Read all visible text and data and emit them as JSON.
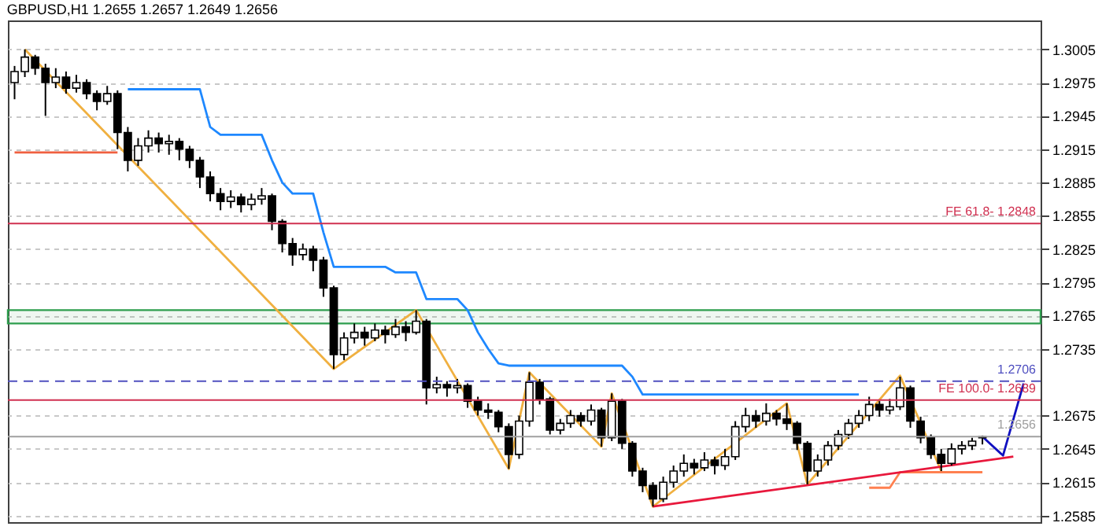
{
  "chart_data": {
    "type": "candlestick",
    "title": "GBPUSD,H1  1.2655 1.2657 1.2649 1.2656",
    "color": "#000000",
    "categories": [
      null,
      null,
      null,
      null,
      null,
      null,
      null,
      null,
      null,
      null,
      null,
      null,
      null,
      null,
      null,
      null,
      null,
      null,
      null,
      null,
      null,
      null,
      null,
      null,
      null,
      null,
      null,
      null,
      null,
      null,
      null,
      null,
      null,
      null,
      null,
      null,
      null,
      null,
      null,
      null,
      null,
      null,
      null,
      null,
      null,
      null,
      null,
      null,
      null,
      null,
      null,
      null,
      null,
      null,
      null,
      null,
      null,
      null,
      null,
      null,
      null,
      null,
      null,
      null,
      null,
      null,
      null,
      null,
      null,
      null,
      null,
      null,
      null,
      null,
      null,
      null,
      null,
      null,
      null,
      null,
      null,
      null,
      null,
      null,
      null,
      null,
      null,
      null,
      null,
      null,
      null,
      null,
      null,
      null,
      null,
      null,
      null,
      null,
      null,
      null
    ],
    "ohlc": [
      [
        1.2975,
        1.299,
        1.296,
        1.2985
      ],
      [
        1.2985,
        1.3005,
        1.298,
        1.2998
      ],
      [
        1.2998,
        1.3,
        1.2982,
        1.2988
      ],
      [
        1.2988,
        1.2992,
        1.2945,
        1.2975
      ],
      [
        1.2975,
        1.2988,
        1.297,
        1.298
      ],
      [
        1.298,
        1.2985,
        1.2965,
        1.297
      ],
      [
        1.297,
        1.2982,
        1.2966,
        1.2975
      ],
      [
        1.2975,
        1.2978,
        1.296,
        1.2965
      ],
      [
        1.2965,
        1.2968,
        1.295,
        1.2958
      ],
      [
        1.2958,
        1.2972,
        1.2955,
        1.2965
      ],
      [
        1.2965,
        1.2968,
        1.2915,
        1.293
      ],
      [
        1.293,
        1.2935,
        1.2895,
        1.2905
      ],
      [
        1.2905,
        1.2925,
        1.29,
        1.2918
      ],
      [
        1.2918,
        1.2932,
        1.2912,
        1.2925
      ],
      [
        1.2925,
        1.293,
        1.2912,
        1.292
      ],
      [
        1.292,
        1.2928,
        1.291,
        1.2922
      ],
      [
        1.2922,
        1.2925,
        1.2905,
        1.2915
      ],
      [
        1.2915,
        1.2918,
        1.2898,
        1.2905
      ],
      [
        1.2905,
        1.2908,
        1.288,
        1.289
      ],
      [
        1.289,
        1.2895,
        1.2868,
        1.2875
      ],
      [
        1.2875,
        1.288,
        1.286,
        1.2868
      ],
      [
        1.2868,
        1.2878,
        1.2862,
        1.2872
      ],
      [
        1.2872,
        1.2875,
        1.2858,
        1.2865
      ],
      [
        1.2865,
        1.2875,
        1.286,
        1.287
      ],
      [
        1.287,
        1.288,
        1.2865,
        1.2873
      ],
      [
        1.2873,
        1.2875,
        1.2842,
        1.285
      ],
      [
        1.285,
        1.2852,
        1.2822,
        1.283
      ],
      [
        1.283,
        1.2835,
        1.281,
        1.282
      ],
      [
        1.282,
        1.283,
        1.2815,
        1.2825
      ],
      [
        1.2825,
        1.2828,
        1.2805,
        1.2815
      ],
      [
        1.2815,
        1.2818,
        1.2782,
        1.279
      ],
      [
        1.279,
        1.2792,
        1.2717,
        1.273
      ],
      [
        1.273,
        1.275,
        1.2725,
        1.2745
      ],
      [
        1.2745,
        1.2758,
        1.274,
        1.275
      ],
      [
        1.275,
        1.2755,
        1.2738,
        1.2745
      ],
      [
        1.2745,
        1.2758,
        1.2742,
        1.2752
      ],
      [
        1.2752,
        1.2756,
        1.274,
        1.2748
      ],
      [
        1.2748,
        1.2762,
        1.2745,
        1.2755
      ],
      [
        1.2755,
        1.276,
        1.2742,
        1.275
      ],
      [
        1.275,
        1.277,
        1.2748,
        1.276
      ],
      [
        1.276,
        1.2762,
        1.2685,
        1.27
      ],
      [
        1.27,
        1.271,
        1.2695,
        1.2703
      ],
      [
        1.2703,
        1.2706,
        1.2692,
        1.27
      ],
      [
        1.27,
        1.2708,
        1.2695,
        1.2702
      ],
      [
        1.2702,
        1.2704,
        1.2682,
        1.2688
      ],
      [
        1.2688,
        1.2692,
        1.2675,
        1.268
      ],
      [
        1.268,
        1.2686,
        1.2672,
        1.2678
      ],
      [
        1.2678,
        1.268,
        1.266,
        1.2665
      ],
      [
        1.2665,
        1.2668,
        1.2627,
        1.264
      ],
      [
        1.264,
        1.2675,
        1.2636,
        1.267
      ],
      [
        1.267,
        1.2714,
        1.2665,
        1.2705
      ],
      [
        1.2705,
        1.2708,
        1.2685,
        1.269
      ],
      [
        1.269,
        1.2692,
        1.2658,
        1.2662
      ],
      [
        1.2662,
        1.2672,
        1.2658,
        1.2668
      ],
      [
        1.2668,
        1.268,
        1.2664,
        1.2675
      ],
      [
        1.2675,
        1.2678,
        1.2665,
        1.267
      ],
      [
        1.267,
        1.2685,
        1.2666,
        1.268
      ],
      [
        1.268,
        1.2682,
        1.2647,
        1.2655
      ],
      [
        1.2655,
        1.2695,
        1.2652,
        1.2688
      ],
      [
        1.2688,
        1.269,
        1.2645,
        1.265
      ],
      [
        1.265,
        1.2652,
        1.262,
        1.2625
      ],
      [
        1.2625,
        1.2628,
        1.2606,
        1.2612
      ],
      [
        1.2612,
        1.2615,
        1.2593,
        1.26
      ],
      [
        1.26,
        1.262,
        1.2597,
        1.2615
      ],
      [
        1.2615,
        1.263,
        1.261,
        1.2625
      ],
      [
        1.2625,
        1.264,
        1.262,
        1.2632
      ],
      [
        1.2632,
        1.2636,
        1.2622,
        1.2628
      ],
      [
        1.2628,
        1.2642,
        1.2625,
        1.2635
      ],
      [
        1.2635,
        1.2638,
        1.2622,
        1.263
      ],
      [
        1.263,
        1.2645,
        1.2626,
        1.2638
      ],
      [
        1.2638,
        1.267,
        1.2635,
        1.2665
      ],
      [
        1.2665,
        1.2682,
        1.266,
        1.2675
      ],
      [
        1.2675,
        1.268,
        1.2664,
        1.267
      ],
      [
        1.267,
        1.2686,
        1.2666,
        1.2677
      ],
      [
        1.2677,
        1.268,
        1.2666,
        1.2672
      ],
      [
        1.2672,
        1.2686,
        1.2662,
        1.2668
      ],
      [
        1.2668,
        1.267,
        1.2644,
        1.265
      ],
      [
        1.265,
        1.2652,
        1.2613,
        1.2625
      ],
      [
        1.2625,
        1.264,
        1.262,
        1.2635
      ],
      [
        1.2635,
        1.2652,
        1.263,
        1.2648
      ],
      [
        1.2648,
        1.2662,
        1.2644,
        1.2658
      ],
      [
        1.2658,
        1.2672,
        1.2654,
        1.2668
      ],
      [
        1.2668,
        1.268,
        1.2664,
        1.2675
      ],
      [
        1.2675,
        1.2692,
        1.267,
        1.2685
      ],
      [
        1.2685,
        1.2688,
        1.2674,
        1.268
      ],
      [
        1.268,
        1.269,
        1.2676,
        1.2683
      ],
      [
        1.2683,
        1.271,
        1.268,
        1.27
      ],
      [
        1.27,
        1.2702,
        1.2664,
        1.267
      ],
      [
        1.267,
        1.2674,
        1.265,
        1.2655
      ],
      [
        1.2655,
        1.2658,
        1.2636,
        1.264
      ],
      [
        1.264,
        1.2645,
        1.2625,
        1.2632
      ],
      [
        1.2632,
        1.265,
        1.263,
        1.2645
      ],
      [
        1.2645,
        1.2652,
        1.264,
        1.2648
      ],
      [
        1.2648,
        1.2655,
        1.2644,
        1.2652
      ],
      [
        1.2655,
        1.2657,
        1.2649,
        1.2656
      ],
      null,
      null,
      null,
      null,
      null
    ],
    "series": [
      {
        "type": "line",
        "color": "#1e88ff",
        "values": [
          null,
          null,
          null,
          null,
          null,
          null,
          null,
          null,
          null,
          null,
          null,
          1.2969,
          1.2969,
          1.2969,
          1.2969,
          1.2969,
          1.2969,
          1.2969,
          1.2969,
          1.2935,
          1.2928,
          1.2928,
          1.2928,
          1.2928,
          1.2928,
          1.2905,
          1.2885,
          1.2875,
          1.2875,
          1.2875,
          1.284,
          1.2809,
          1.2809,
          1.2809,
          1.2809,
          1.2809,
          1.2809,
          1.2804,
          1.2804,
          1.2804,
          1.278,
          1.278,
          1.278,
          1.278,
          1.277,
          1.275,
          1.2735,
          1.2722,
          1.272,
          1.272,
          1.272,
          1.272,
          1.272,
          1.272,
          1.272,
          1.272,
          1.272,
          1.272,
          1.272,
          1.272,
          1.271,
          1.2694,
          1.2694,
          1.2694,
          1.2694,
          1.2694,
          1.2694,
          1.2694,
          1.2694,
          1.2694,
          1.2694,
          1.2694,
          1.2694,
          1.2694,
          1.2694,
          1.2694,
          1.2694,
          1.2694,
          1.2694,
          1.2694,
          1.2694,
          1.2694,
          1.2694,
          null,
          null,
          null,
          null,
          null,
          null,
          null,
          null,
          null,
          null,
          null,
          null,
          null,
          null,
          null,
          null,
          null
        ]
      },
      {
        "type": "line",
        "color": "#f0b040",
        "values": [
          null,
          1.3005,
          null,
          null,
          null,
          null,
          null,
          null,
          null,
          null,
          null,
          null,
          null,
          null,
          null,
          null,
          null,
          null,
          null,
          null,
          null,
          null,
          null,
          null,
          null,
          null,
          null,
          null,
          null,
          null,
          null,
          1.2717,
          null,
          null,
          null,
          null,
          null,
          null,
          null,
          1.277,
          null,
          null,
          null,
          null,
          null,
          null,
          null,
          null,
          1.2627,
          null,
          1.2714,
          null,
          null,
          null,
          null,
          null,
          null,
          1.2647,
          1.2695,
          null,
          null,
          null,
          1.2593,
          null,
          null,
          null,
          null,
          null,
          null,
          null,
          null,
          null,
          null,
          null,
          null,
          1.2686,
          null,
          1.2613,
          null,
          null,
          null,
          null,
          null,
          null,
          null,
          null,
          1.2711,
          null,
          null,
          null,
          1.2625,
          null,
          null,
          null,
          null,
          null,
          null,
          null,
          null,
          null
        ]
      },
      {
        "type": "line",
        "color": "#f06040",
        "values": [
          1.2912,
          1.2912,
          1.2912,
          1.2912,
          1.2912,
          1.2912,
          1.2912,
          1.2912,
          1.2912,
          1.2912,
          1.2912,
          null,
          null,
          null,
          null,
          null,
          null,
          null,
          null,
          null,
          null,
          null,
          null,
          null,
          null,
          null,
          null,
          null,
          null,
          null,
          null,
          null,
          null,
          null,
          null,
          null,
          null,
          null,
          null,
          null,
          null,
          null,
          null,
          null,
          null,
          null,
          null,
          null,
          null,
          null,
          null,
          null,
          null,
          null,
          null,
          null,
          null,
          null,
          null,
          null,
          null,
          null,
          null,
          null,
          null,
          null,
          null,
          null,
          null,
          null,
          null,
          null,
          null,
          null,
          null,
          null,
          null,
          null,
          null,
          null,
          null,
          null,
          null,
          null,
          null,
          null,
          null,
          null,
          null,
          null,
          null,
          null,
          null,
          null,
          null,
          null,
          null,
          null,
          null,
          null
        ]
      },
      {
        "type": "line",
        "color": "#ff8050",
        "values": [
          null,
          null,
          null,
          null,
          null,
          null,
          null,
          null,
          null,
          null,
          null,
          null,
          null,
          null,
          null,
          null,
          null,
          null,
          null,
          null,
          null,
          null,
          null,
          null,
          null,
          null,
          null,
          null,
          null,
          null,
          null,
          null,
          null,
          null,
          null,
          null,
          null,
          null,
          null,
          null,
          null,
          null,
          null,
          null,
          null,
          null,
          null,
          null,
          null,
          null,
          null,
          null,
          null,
          null,
          null,
          null,
          null,
          null,
          null,
          null,
          null,
          null,
          null,
          null,
          null,
          null,
          null,
          null,
          null,
          null,
          null,
          null,
          null,
          null,
          null,
          null,
          null,
          null,
          null,
          null,
          null,
          null,
          null,
          1.261,
          1.261,
          1.261,
          1.2624,
          1.2624,
          1.2624,
          1.2624,
          1.2624,
          1.2624,
          1.2624,
          1.2624,
          1.2624,
          null,
          null,
          null,
          null,
          null
        ]
      },
      {
        "type": "line",
        "color": "#e8183c",
        "values": [
          null,
          null,
          null,
          null,
          null,
          null,
          null,
          null,
          null,
          null,
          null,
          null,
          null,
          null,
          null,
          null,
          null,
          null,
          null,
          null,
          null,
          null,
          null,
          null,
          null,
          null,
          null,
          null,
          null,
          null,
          null,
          null,
          null,
          null,
          null,
          null,
          null,
          null,
          null,
          null,
          null,
          null,
          null,
          null,
          null,
          null,
          null,
          null,
          null,
          null,
          null,
          null,
          null,
          null,
          null,
          null,
          null,
          null,
          null,
          null,
          null,
          null,
          1.2593,
          null,
          null,
          null,
          null,
          null,
          null,
          null,
          null,
          null,
          null,
          null,
          null,
          null,
          null,
          null,
          null,
          null,
          null,
          null,
          null,
          null,
          null,
          null,
          null,
          null,
          null,
          null,
          null,
          null,
          null,
          null,
          null,
          null,
          null,
          1.2638,
          null,
          null
        ]
      },
      {
        "type": "line",
        "color": "#1010c0",
        "values": [
          null,
          null,
          null,
          null,
          null,
          null,
          null,
          null,
          null,
          null,
          null,
          null,
          null,
          null,
          null,
          null,
          null,
          null,
          null,
          null,
          null,
          null,
          null,
          null,
          null,
          null,
          null,
          null,
          null,
          null,
          null,
          null,
          null,
          null,
          null,
          null,
          null,
          null,
          null,
          null,
          null,
          null,
          null,
          null,
          null,
          null,
          null,
          null,
          null,
          null,
          null,
          null,
          null,
          null,
          null,
          null,
          null,
          null,
          null,
          null,
          null,
          null,
          null,
          null,
          null,
          null,
          null,
          null,
          null,
          null,
          null,
          null,
          null,
          null,
          null,
          null,
          null,
          null,
          null,
          null,
          null,
          null,
          null,
          null,
          null,
          null,
          null,
          null,
          null,
          null,
          null,
          null,
          null,
          null,
          1.2656,
          null,
          1.2639,
          null,
          1.2704,
          null
        ]
      }
    ],
    "ylim": [
      1.2579,
      1.3031
    ],
    "yticks": [
      1.2585,
      1.2615,
      1.2645,
      1.2675,
      1.2735,
      1.2765,
      1.2795,
      1.2825,
      1.2855,
      1.2885,
      1.2915,
      1.2945,
      1.2975,
      1.3005
    ],
    "ref_lines": [
      {
        "axis": "y",
        "value": 1.2848,
        "label": "FE 61.8- 1.2848",
        "color": "#d03050"
      },
      {
        "axis": "y",
        "value": 1.2689,
        "label": "FE 100.0- 1.2689",
        "color": "#d03050"
      },
      {
        "axis": "y",
        "value": 1.2706,
        "label": "1.2706",
        "color": "#5050c0",
        "line_style": "dashed"
      },
      {
        "axis": "y",
        "value": 1.2656,
        "label": "1.2656",
        "color": "#a0a0a0"
      }
    ],
    "bands": [
      {
        "axis": "y",
        "from": 1.2758,
        "to": 1.277,
        "color": "#2e9e4e"
      }
    ],
    "grid": "y",
    "tick_labels": "y"
  }
}
